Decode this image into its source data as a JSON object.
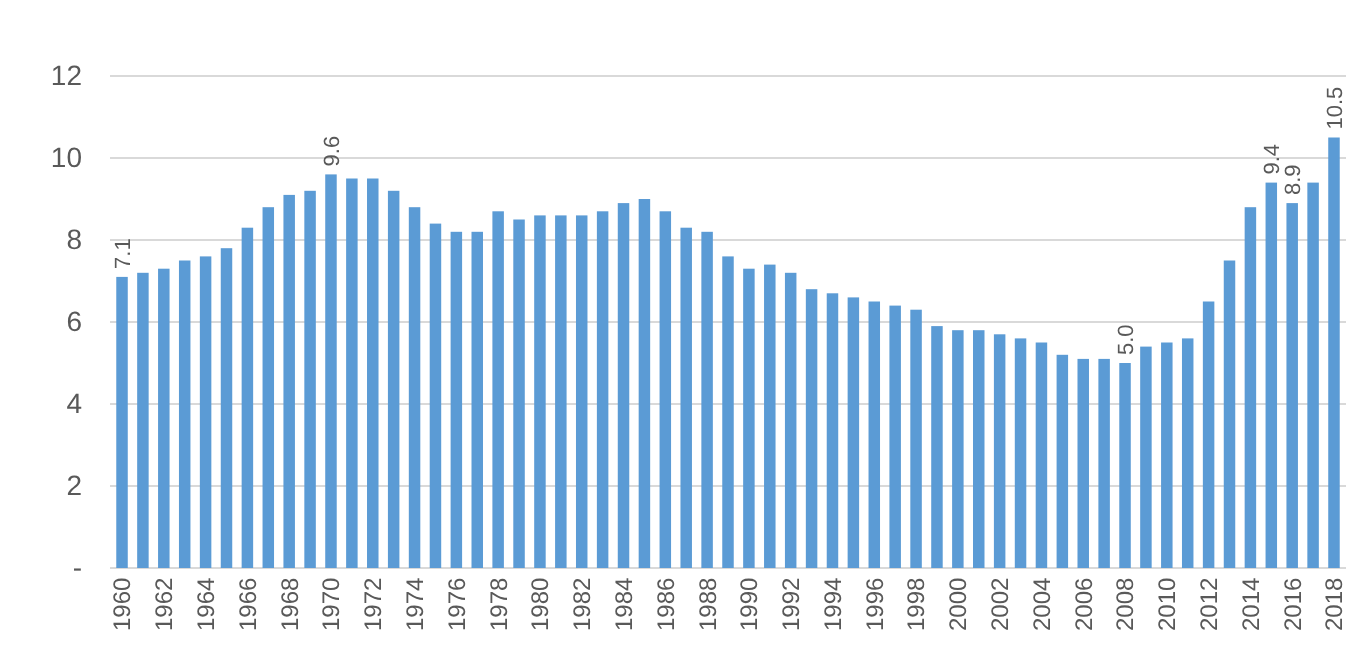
{
  "chart_data": {
    "type": "bar",
    "categories": [
      "1960",
      null,
      "1962",
      null,
      "1964",
      null,
      "1966",
      null,
      "1968",
      null,
      "1970",
      null,
      "1972",
      null,
      "1974",
      null,
      "1976",
      null,
      "1978",
      null,
      "1980",
      null,
      "1982",
      null,
      "1984",
      null,
      "1986",
      null,
      "1988",
      null,
      "1990",
      null,
      "1992",
      null,
      "1994",
      null,
      "1996",
      null,
      "1998",
      null,
      "2000",
      null,
      "2002",
      null,
      "2004",
      null,
      "2006",
      null,
      "2008",
      null,
      "2010",
      null,
      "2012",
      null,
      "2014",
      null,
      "2016",
      null,
      "2018"
    ],
    "values": [
      7.1,
      7.2,
      7.3,
      7.5,
      7.6,
      7.8,
      8.3,
      8.8,
      9.1,
      9.2,
      9.6,
      9.5,
      9.5,
      9.2,
      8.8,
      8.4,
      8.2,
      8.2,
      8.7,
      8.5,
      8.6,
      8.6,
      8.6,
      8.7,
      8.9,
      9.0,
      8.7,
      8.3,
      8.2,
      7.6,
      7.3,
      7.4,
      7.2,
      6.8,
      6.7,
      6.6,
      6.5,
      6.4,
      6.3,
      5.9,
      5.8,
      5.8,
      5.7,
      5.6,
      5.5,
      5.2,
      5.1,
      5.1,
      5.0,
      5.4,
      5.5,
      5.6,
      6.5,
      7.5,
      8.8,
      9.4,
      8.9,
      9.4,
      10.5
    ],
    "value_labels": [
      "7.1",
      null,
      null,
      null,
      null,
      null,
      null,
      null,
      null,
      null,
      "9.6",
      null,
      null,
      null,
      null,
      null,
      null,
      null,
      null,
      null,
      null,
      null,
      null,
      null,
      null,
      null,
      null,
      null,
      null,
      null,
      null,
      null,
      null,
      null,
      null,
      null,
      null,
      null,
      null,
      null,
      null,
      null,
      null,
      null,
      null,
      null,
      null,
      null,
      "5.0",
      null,
      null,
      null,
      null,
      null,
      null,
      "9.4",
      "8.9",
      null,
      "10.5"
    ],
    "color": "#5b9bd5",
    "ylim": [
      0,
      12
    ],
    "yticks": [
      {
        "value": 0,
        "label": "-"
      },
      2,
      4,
      6,
      8,
      10,
      12
    ],
    "grid": "y"
  }
}
